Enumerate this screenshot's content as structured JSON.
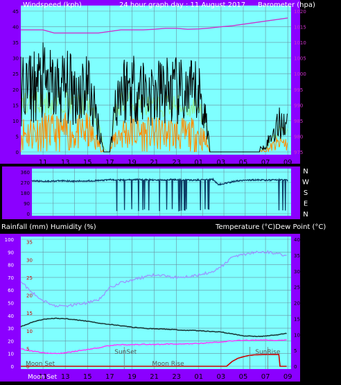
{
  "header": {
    "left": "Windspeed (kph)",
    "center": "24 hour graph day : 11 August 2017",
    "right": "Barometer (hpa)"
  },
  "lower_header": {
    "left": "Rainfall (mm)  Humidity (%)",
    "right": "Temperature (°C)Dew Point (°C)"
  },
  "colors": {
    "background": "#000000",
    "frame": "#8b00ff",
    "plot_background": "#7fffff",
    "grid": "#6a8fa0",
    "wind": "#000000",
    "gust": "#90ee90",
    "orange_series": "#ff8c00",
    "barometer": "#cc33cc",
    "direction": "#0e3d66",
    "humidity": "#9999ff",
    "temperature": "#1b3a3a",
    "dew_point": "#ff33ff",
    "rainfall": "#cc0000",
    "moon_sun_lines": "#777777"
  },
  "x_axis": {
    "ticks": [
      "11",
      "13",
      "15",
      "17",
      "19",
      "21",
      "23",
      "01",
      "03",
      "05",
      "07",
      "09"
    ]
  },
  "chart_data": [
    {
      "type": "line",
      "panel": "wind_barometer",
      "y_left_ticks": [
        "0",
        "5",
        "10",
        "15",
        "20",
        "25",
        "30",
        "35",
        "40",
        "45"
      ],
      "y_left_range": [
        0,
        45
      ],
      "y_right_ticks": [
        "975",
        "980",
        "985",
        "990",
        "995",
        "1000",
        "1005",
        "1010",
        "1015",
        "1020"
      ],
      "y_right_range": [
        975,
        1020
      ],
      "series": [
        {
          "key": "barometer",
          "x": [
            9,
            10,
            11,
            12,
            13,
            14,
            15,
            16,
            17,
            18,
            19,
            20,
            21,
            22,
            23,
            24,
            25,
            26,
            27,
            28,
            29,
            30,
            31,
            32,
            33
          ],
          "y": [
            1014,
            1014,
            1014,
            1013,
            1013,
            1013,
            1013,
            1013,
            1013.5,
            1014,
            1014,
            1014,
            1014.2,
            1014.5,
            1014.5,
            1014.2,
            1014.3,
            1014.6,
            1015,
            1015.3,
            1015.8,
            1016.3,
            1016.8,
            1017.3,
            1017.8
          ]
        },
        {
          "key": "wind_avg",
          "x": [
            9,
            10,
            11,
            12,
            13,
            14,
            15,
            16,
            16.5,
            17,
            17.5,
            18,
            19,
            20,
            21,
            22,
            23,
            24,
            25,
            25.8,
            26,
            27,
            28,
            29,
            30,
            31,
            32,
            32.5,
            33
          ],
          "y": [
            10,
            10.5,
            11,
            10,
            10.5,
            9.5,
            11,
            4,
            0,
            0,
            8,
            10,
            10.5,
            10,
            9,
            10,
            9.5,
            9,
            9.5,
            4,
            0,
            0,
            0,
            0,
            0,
            1,
            4,
            5,
            4
          ]
        },
        {
          "key": "gust",
          "x": [
            9,
            10,
            11,
            12,
            13,
            14,
            15,
            16,
            16.5,
            17,
            17.5,
            18,
            19,
            20,
            21,
            22,
            23,
            24,
            25,
            25.8,
            26,
            27,
            28,
            29,
            30,
            31,
            32,
            32.5,
            33
          ],
          "y": [
            15,
            16,
            16,
            15,
            17,
            15,
            16,
            8,
            1,
            0,
            12,
            16,
            16,
            15,
            14,
            15,
            15,
            14,
            15,
            6,
            0,
            0,
            0,
            0,
            0,
            1,
            6,
            8,
            6
          ]
        }
      ]
    },
    {
      "type": "line",
      "panel": "wind_direction",
      "y_left_ticks": [
        "360",
        "270",
        "180",
        "90",
        "0"
      ],
      "y_right_ticks": [
        "N",
        "W",
        "S",
        "E",
        "N"
      ],
      "series": [
        {
          "key": "direction",
          "x": [
            9,
            10,
            11,
            12,
            13,
            14,
            15,
            16,
            16.3,
            17,
            18,
            19,
            20,
            21,
            22,
            23,
            24,
            25,
            26,
            26.5,
            27,
            28,
            29,
            30,
            31,
            32,
            33
          ],
          "y": [
            285,
            280,
            282,
            285,
            280,
            283,
            285,
            290,
            295,
            290,
            292,
            295,
            292,
            290,
            295,
            293,
            290,
            292,
            295,
            250,
            260,
            280,
            290,
            292,
            290,
            292,
            290
          ]
        }
      ]
    },
    {
      "type": "line",
      "panel": "temperature_humidity_rain",
      "y_left_ticks": [
        "0",
        "10",
        "20",
        "30",
        "40",
        "50",
        "60",
        "70",
        "80",
        "90",
        "100"
      ],
      "y_left_range": [
        0,
        100
      ],
      "y_left2_ticks": [
        "0",
        "5",
        "10",
        "15",
        "20",
        "25",
        "30",
        "35"
      ],
      "y_right_ticks": [
        "0",
        "5",
        "10",
        "15",
        "20",
        "25",
        "30",
        "35",
        "40"
      ],
      "y_right_range": [
        0,
        40
      ],
      "series": [
        {
          "key": "humidity",
          "x": [
            9,
            10,
            11,
            12,
            13,
            14,
            15,
            16,
            17,
            18,
            19,
            20,
            21,
            22,
            23,
            24,
            25,
            26,
            27,
            28,
            29,
            30,
            31,
            32,
            33
          ],
          "y": [
            67,
            58,
            52,
            48,
            47,
            49,
            50,
            52,
            62,
            66,
            68,
            70,
            72,
            71,
            70,
            71,
            72,
            74,
            78,
            86,
            88,
            90,
            90,
            89,
            87
          ]
        },
        {
          "key": "temperature",
          "x": [
            9,
            10,
            11,
            12,
            13,
            14,
            15,
            16,
            17,
            18,
            19,
            20,
            21,
            22,
            23,
            24,
            25,
            26,
            27,
            28,
            29,
            30,
            31,
            32,
            33
          ],
          "y": [
            12.5,
            13.8,
            14.8,
            15.1,
            15.0,
            14.6,
            14.2,
            13.6,
            13.2,
            12.8,
            12.3,
            12.0,
            11.8,
            11.7,
            11.5,
            11.3,
            11.2,
            11.0,
            10.8,
            10.2,
            9.6,
            9.4,
            9.5,
            9.9,
            10.4
          ]
        },
        {
          "key": "dew_point",
          "x": [
            9,
            10,
            11,
            12,
            13,
            14,
            15,
            16,
            17,
            18,
            19,
            20,
            21,
            22,
            23,
            24,
            25,
            26,
            27,
            28,
            29,
            30,
            31,
            32,
            33
          ],
          "y": [
            5.5,
            4.8,
            4.3,
            4.0,
            4.2,
            4.8,
            5.3,
            5.8,
            6.5,
            6.8,
            6.8,
            6.9,
            6.8,
            7.0,
            7.0,
            7.1,
            7.2,
            7.4,
            7.7,
            8.0,
            8.2,
            8.2,
            8.3,
            8.2,
            8.3
          ]
        },
        {
          "key": "rainfall",
          "x": [
            9,
            27.5,
            28,
            28.5,
            29,
            29.5,
            30,
            31,
            32,
            32.2,
            32.3,
            33
          ],
          "y": [
            0,
            0,
            1.5,
            2.5,
            3.0,
            3.4,
            3.6,
            3.7,
            3.7,
            3.7,
            0,
            0
          ]
        }
      ]
    }
  ],
  "annotations": {
    "moon_set_top": "Moon Set",
    "sun_set": "SunSet",
    "moon_rise": "Moon Rise",
    "sun_rise": "SunRise",
    "moon_set_bottom": "Moon Set"
  }
}
